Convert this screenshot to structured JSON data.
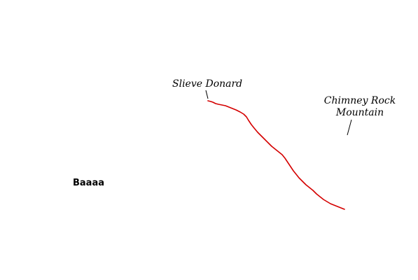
{
  "labels": {
    "peak_start": "Slieve Donard",
    "peak_end_line1": "Chimney Rock",
    "peak_end_line2": "Mountain",
    "sheep": "Baaaa"
  },
  "colors": {
    "route": "#d40000",
    "text": "#000000",
    "background": "#ffffff"
  }
}
